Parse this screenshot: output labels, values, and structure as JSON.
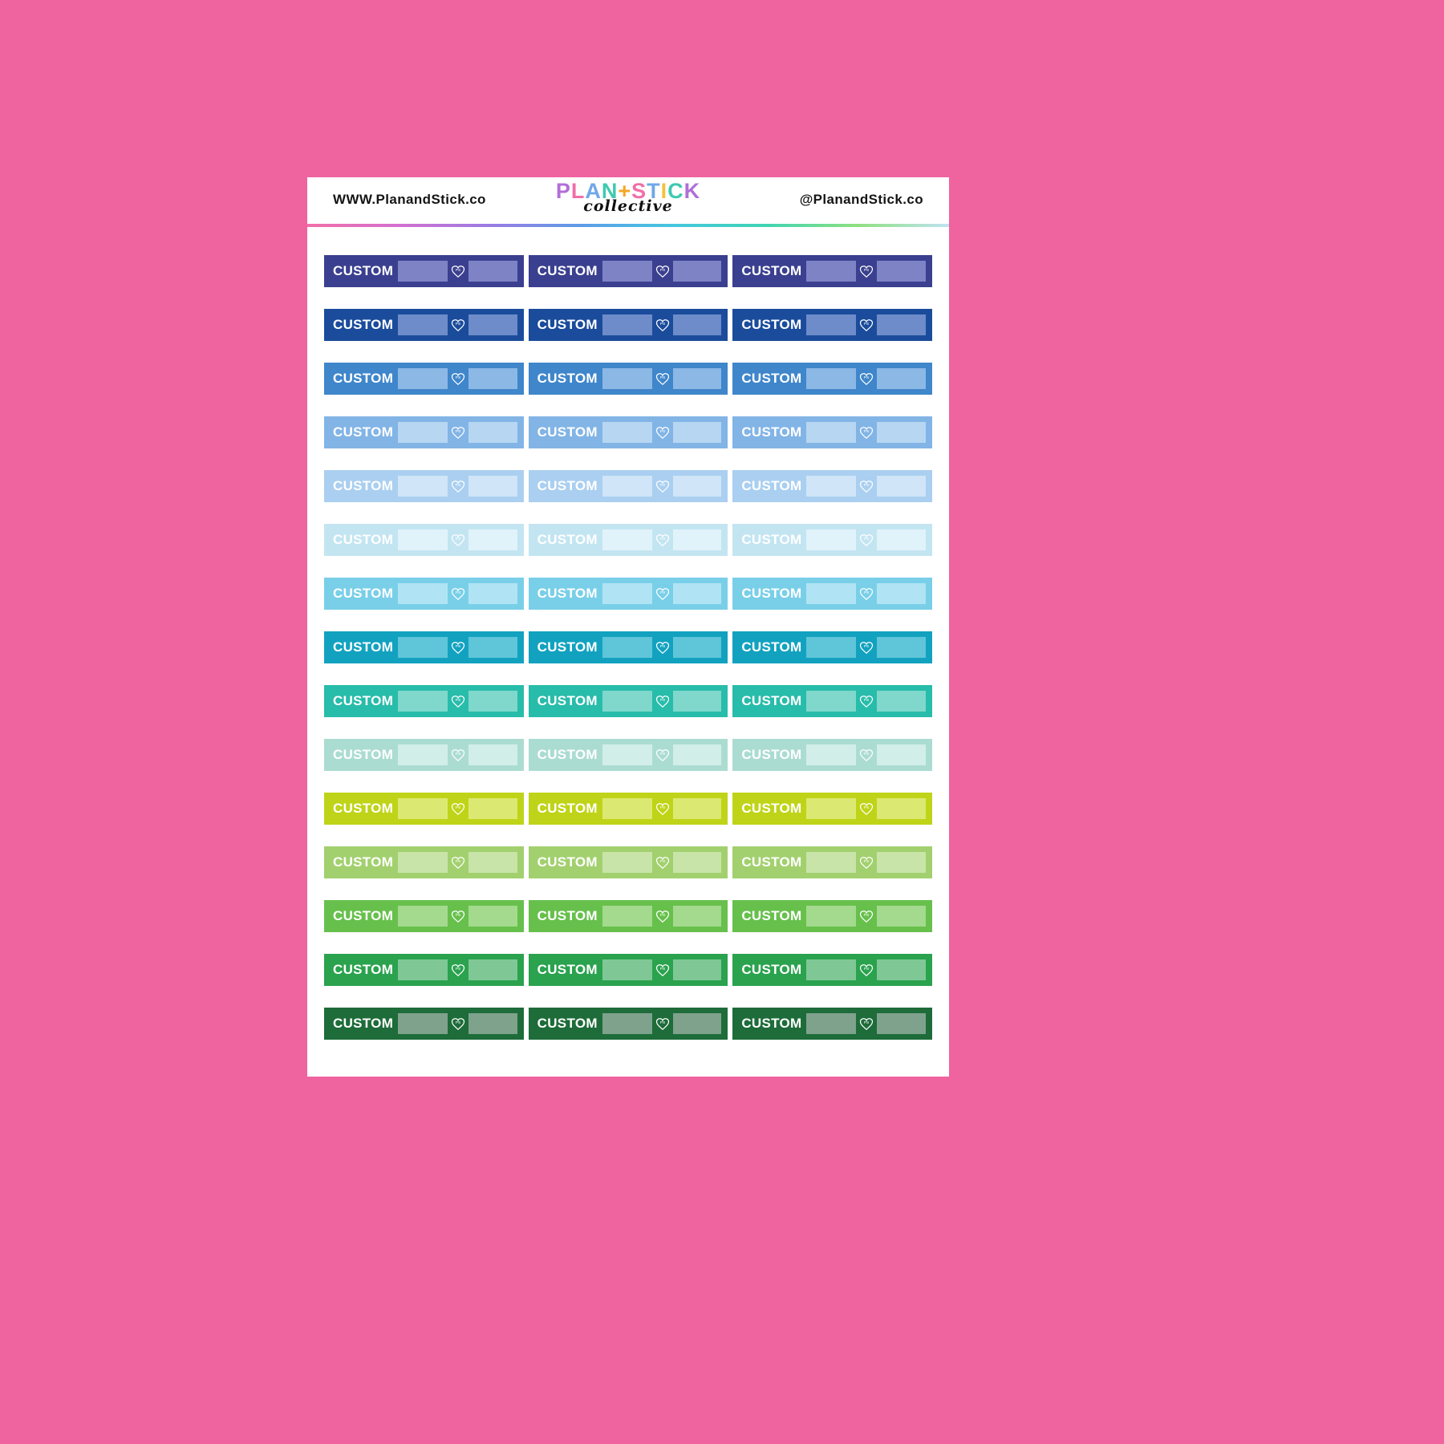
{
  "page": {
    "background": "#ef639f"
  },
  "sheet": {
    "header": {
      "website": "WWW.PlanandStick.co",
      "handle": "@PlanandStick.co",
      "logo": {
        "line1_letters": [
          {
            "ch": "P",
            "color": "#b06fd8"
          },
          {
            "ch": "L",
            "color": "#f06fa8"
          },
          {
            "ch": "A",
            "color": "#6fa8e8"
          },
          {
            "ch": "N",
            "color": "#3fc9b0"
          },
          {
            "ch": "+",
            "color": "#f5a623"
          },
          {
            "ch": "S",
            "color": "#f06fa8"
          },
          {
            "ch": "T",
            "color": "#6fa8e8"
          },
          {
            "ch": "I",
            "color": "#f5c13b"
          },
          {
            "ch": "C",
            "color": "#3fc9b0"
          },
          {
            "ch": "K",
            "color": "#b06fd8"
          }
        ],
        "line2": "collective"
      },
      "rainbow_colors": [
        "#f26fa8",
        "#d46fd0",
        "#9a7be4",
        "#5b9de8",
        "#45c8e0",
        "#3fd4b4",
        "#8fe07f",
        "#bfe3f2"
      ]
    }
  },
  "stickers": {
    "label": "CUSTOM",
    "heart_icon_text": "PS",
    "columns": 3,
    "rows": [
      {
        "name": "indigo",
        "bg": "#3a3f8f",
        "box": "#7e83c6"
      },
      {
        "name": "royal-blue",
        "bg": "#1b4c9c",
        "box": "#6d8cc9"
      },
      {
        "name": "blue",
        "bg": "#3f86cb",
        "box": "#8cb8e6"
      },
      {
        "name": "light-blue",
        "bg": "#82b4e6",
        "box": "#b6d6f2"
      },
      {
        "name": "pale-blue",
        "bg": "#aacff0",
        "box": "#d0e5f8"
      },
      {
        "name": "powder-blue",
        "bg": "#c3e5f2",
        "box": "#e0f3fa"
      },
      {
        "name": "sky-cyan",
        "bg": "#79cfe8",
        "box": "#b0e4f4"
      },
      {
        "name": "teal-blue",
        "bg": "#12a2c0",
        "box": "#5fc5d9"
      },
      {
        "name": "teal-green",
        "bg": "#28bcaa",
        "box": "#7fd8cb"
      },
      {
        "name": "mint",
        "bg": "#abdcd2",
        "box": "#d2eee8"
      },
      {
        "name": "chartreuse",
        "bg": "#bfd418",
        "box": "#dbe972"
      },
      {
        "name": "yellow-green",
        "bg": "#a2d06e",
        "box": "#c8e4a8"
      },
      {
        "name": "green",
        "bg": "#67c04c",
        "box": "#a3da8e"
      },
      {
        "name": "kelly-green",
        "bg": "#2aa24e",
        "box": "#7fc896"
      },
      {
        "name": "forest-green",
        "bg": "#1d6c39",
        "box": "#7fa28d"
      }
    ]
  }
}
